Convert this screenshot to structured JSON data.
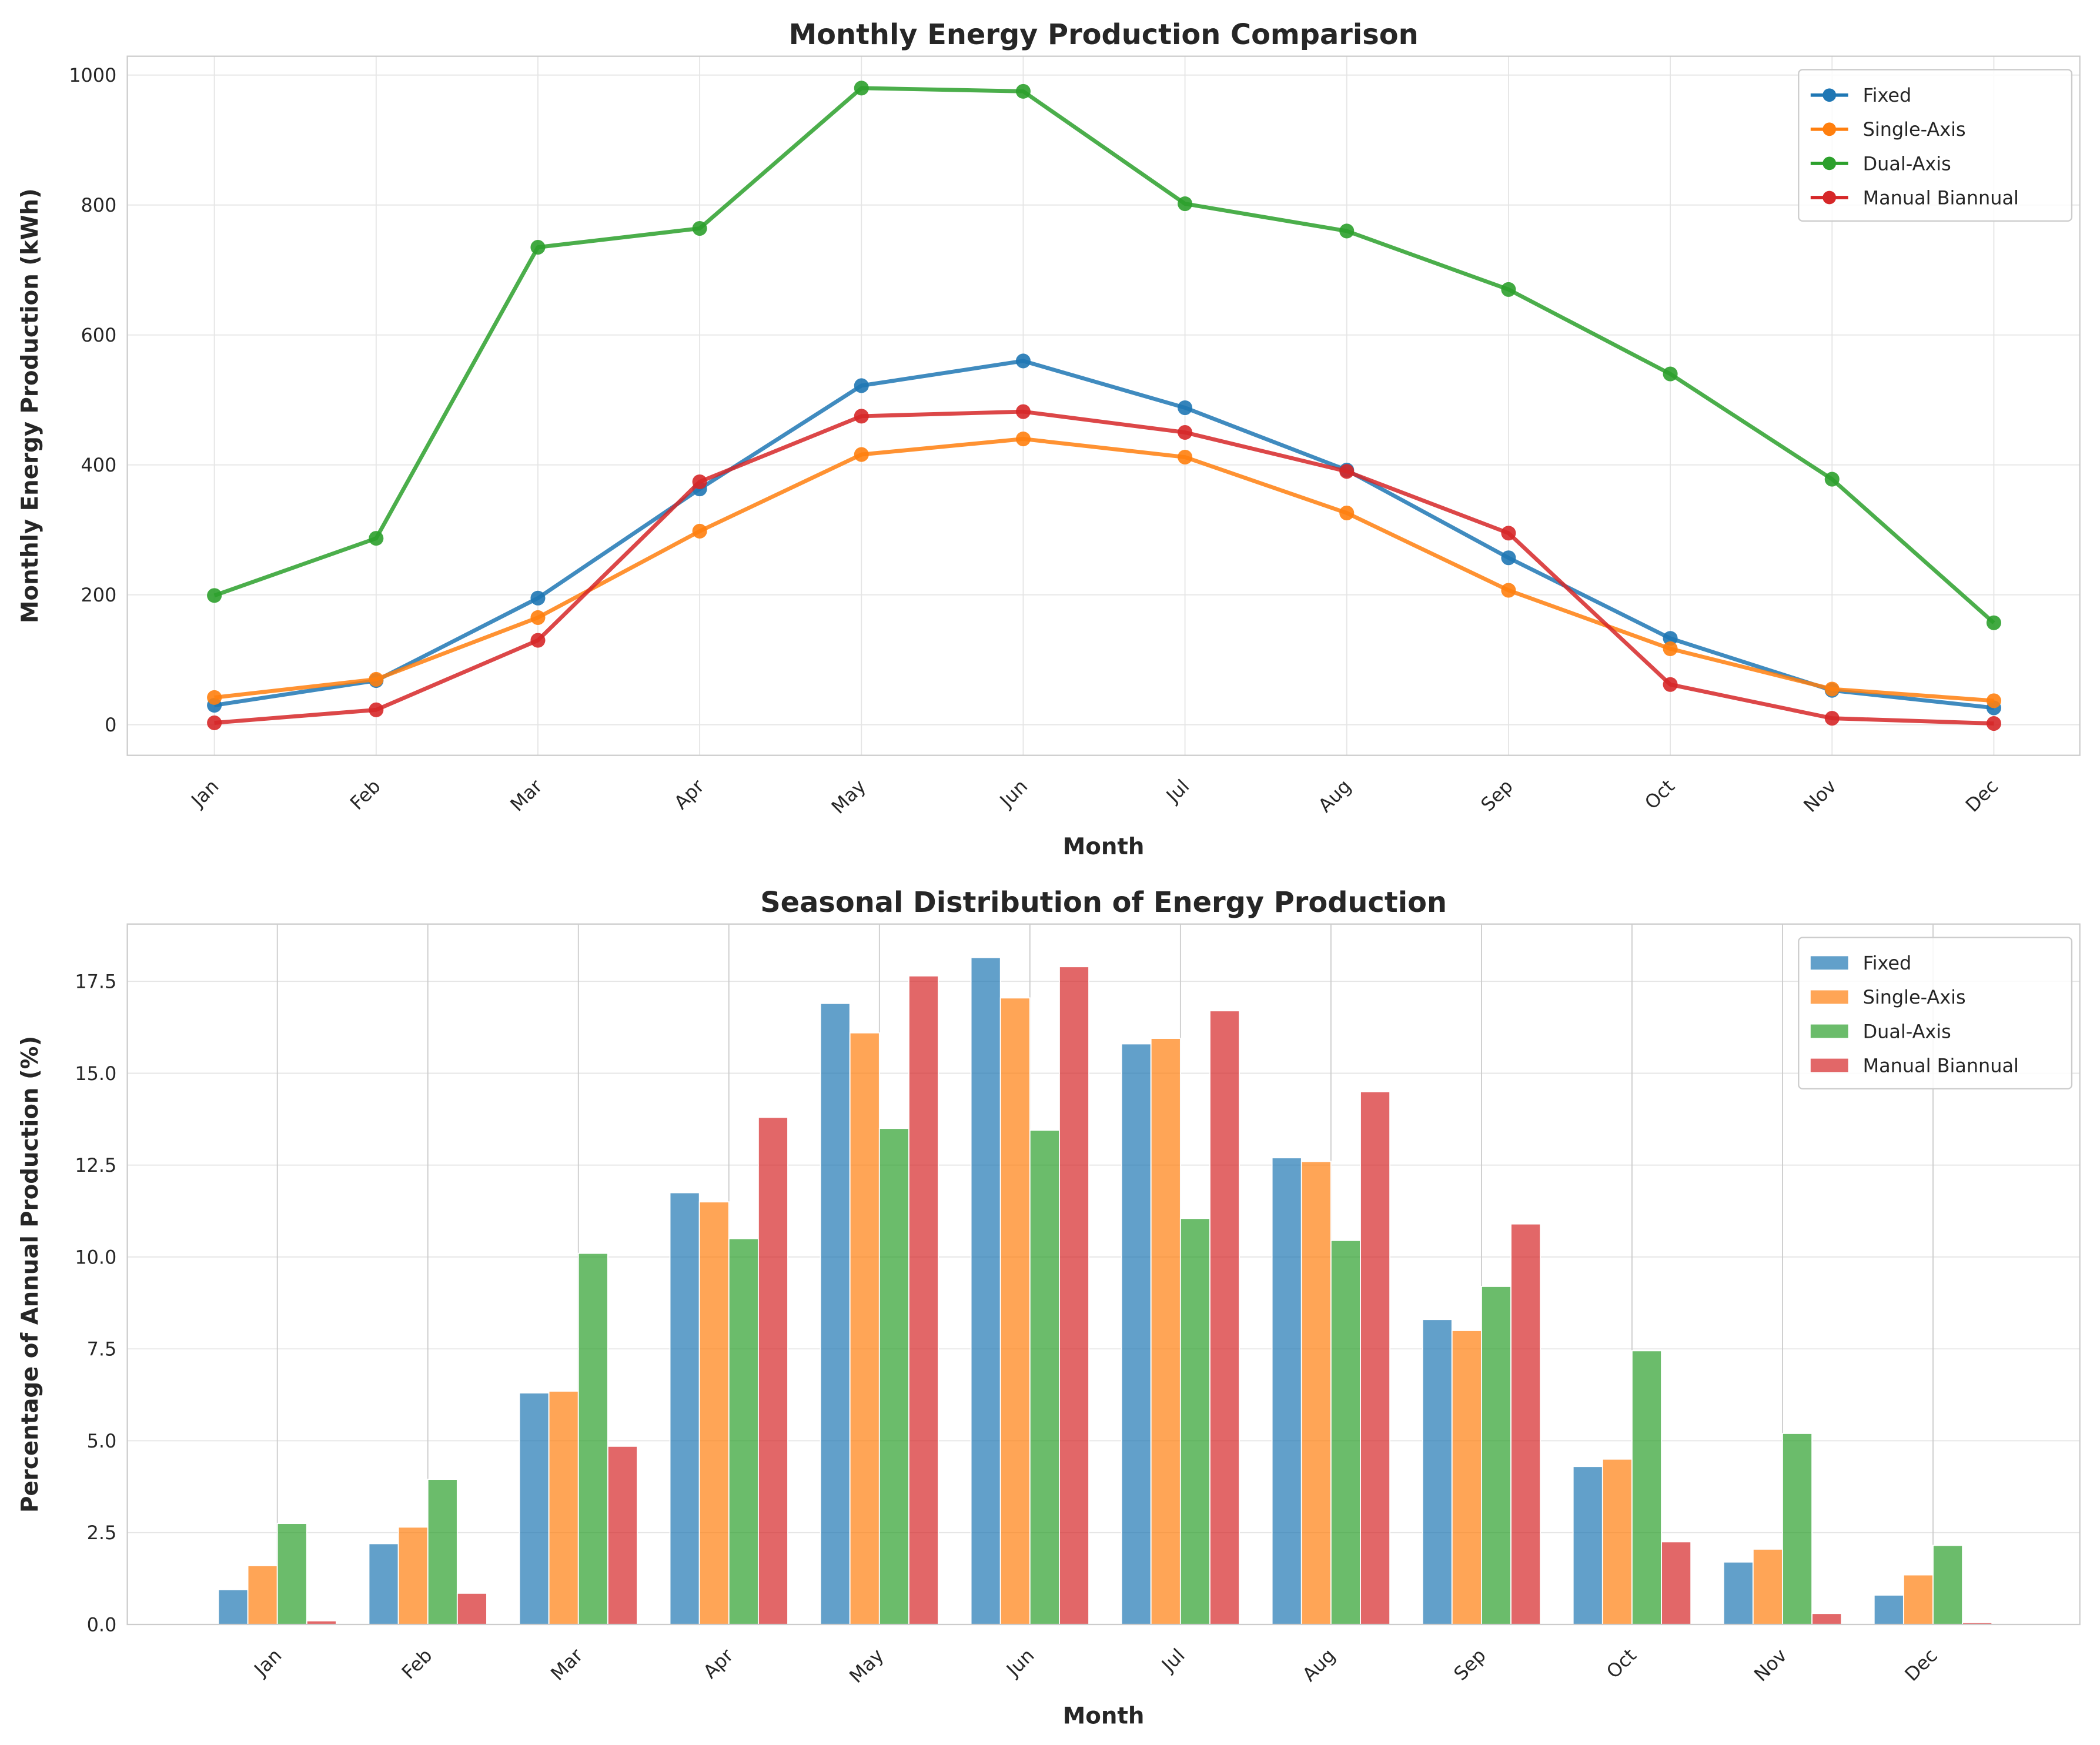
{
  "colors": {
    "Fixed": "#1f77b4",
    "Single-Axis": "#ff7f0e",
    "Dual-Axis": "#2ca02c",
    "Manual Biannual": "#d62728"
  },
  "chart_data": [
    {
      "type": "line",
      "title": "Monthly Energy Production Comparison",
      "xlabel": "Month",
      "ylabel": "Monthly Energy Production (kWh)",
      "categories": [
        "Jan",
        "Feb",
        "Mar",
        "Apr",
        "May",
        "Jun",
        "Jul",
        "Aug",
        "Sep",
        "Oct",
        "Nov",
        "Dec"
      ],
      "ylim": [
        -47,
        1029
      ],
      "yticks": [
        0,
        200,
        400,
        600,
        800,
        1000
      ],
      "grid": true,
      "legend": "top-right",
      "series": [
        {
          "name": "Fixed",
          "values": [
            30,
            68,
            195,
            363,
            522,
            560,
            488,
            392,
            257,
            133,
            53,
            26
          ]
        },
        {
          "name": "Single-Axis",
          "values": [
            42,
            70,
            165,
            298,
            416,
            440,
            412,
            326,
            207,
            117,
            55,
            37
          ]
        },
        {
          "name": "Dual-Axis",
          "values": [
            199,
            287,
            735,
            764,
            980,
            975,
            802,
            760,
            670,
            540,
            378,
            157
          ]
        },
        {
          "name": "Manual Biannual",
          "values": [
            3,
            23,
            130,
            374,
            475,
            482,
            450,
            390,
            295,
            62,
            10,
            2
          ]
        }
      ]
    },
    {
      "type": "bar",
      "title": "Seasonal Distribution of Energy Production",
      "xlabel": "Month",
      "ylabel": "Percentage of Annual Production (%)",
      "categories": [
        "Jan",
        "Feb",
        "Mar",
        "Apr",
        "May",
        "Jun",
        "Jul",
        "Aug",
        "Sep",
        "Oct",
        "Nov",
        "Dec"
      ],
      "ylim": [
        0,
        19.06
      ],
      "yticks": [
        "0.0",
        "2.5",
        "5.0",
        "7.5",
        "10.0",
        "12.5",
        "15.0",
        "17.5"
      ],
      "grid": true,
      "legend": "top-right",
      "series": [
        {
          "name": "Fixed",
          "values": [
            0.95,
            2.2,
            6.3,
            11.75,
            16.9,
            18.15,
            15.8,
            12.7,
            8.3,
            4.3,
            1.7,
            0.8
          ]
        },
        {
          "name": "Single-Axis",
          "values": [
            1.6,
            2.65,
            6.35,
            11.5,
            16.1,
            17.05,
            15.95,
            12.6,
            8.0,
            4.5,
            2.05,
            1.35
          ]
        },
        {
          "name": "Dual-Axis",
          "values": [
            2.75,
            3.95,
            10.1,
            10.5,
            13.5,
            13.45,
            11.05,
            10.45,
            9.2,
            7.45,
            5.2,
            2.15
          ]
        },
        {
          "name": "Manual Biannual",
          "values": [
            0.1,
            0.85,
            4.85,
            13.8,
            17.65,
            17.9,
            16.7,
            14.5,
            10.9,
            2.25,
            0.3,
            0.05
          ]
        }
      ]
    }
  ]
}
